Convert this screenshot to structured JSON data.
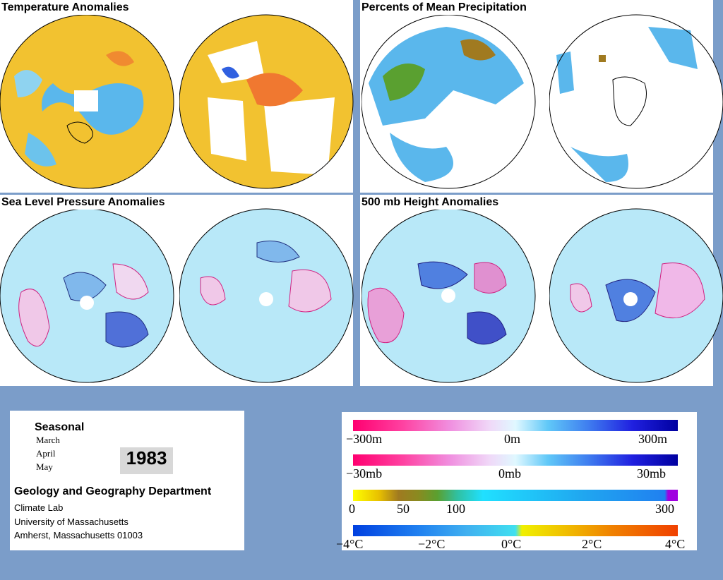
{
  "panels": {
    "temperature": {
      "title": "Temperature Anomalies"
    },
    "precipitation": {
      "title": "Percents of Mean Precipitation"
    },
    "pressure": {
      "title": "Sea Level Pressure Anomalies"
    },
    "height": {
      "title": "500 mb Height Anomalies"
    }
  },
  "info": {
    "period_heading": "Seasonal",
    "months": [
      "March",
      "April",
      "May"
    ],
    "year": "1983",
    "department": "Geology and Geography Department",
    "lines": [
      "Climate Lab",
      "University of Massachusetts",
      "Amherst, Massachusetts 01003"
    ]
  },
  "legends": {
    "height": {
      "ticks": [
        "−300m",
        "0m",
        "300m"
      ]
    },
    "pressure": {
      "ticks": [
        "−30mb",
        "0mb",
        "30mb"
      ]
    },
    "precipitation": {
      "ticks": [
        "0",
        "50",
        "100",
        "300"
      ]
    },
    "temperature": {
      "ticks": [
        "−4°C",
        "−2°C",
        "0°C",
        "2°C",
        "4°C"
      ]
    }
  },
  "colors": {
    "background": "#7b9dc9",
    "anomaly_negative": "#ff1493",
    "anomaly_positive": "#0000cc",
    "neutral": "#e0f8ff",
    "warm": "#ff4500",
    "cool": "#1e90ff"
  }
}
